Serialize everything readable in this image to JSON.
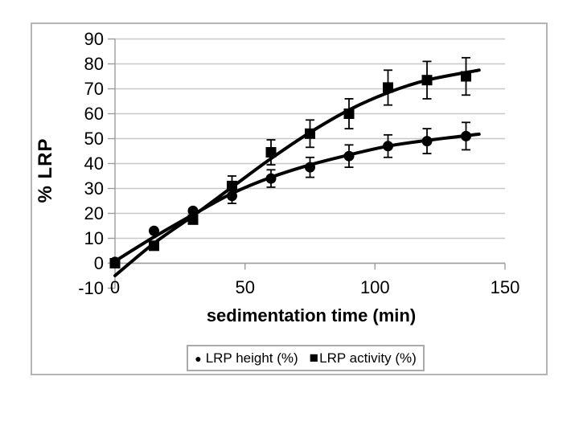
{
  "figure": {
    "y_axis_title": "% LRP",
    "x_axis_title": "sedimentation time (min)",
    "legend": {
      "items": [
        {
          "icon": "circle-marker-icon",
          "glyph": "●",
          "label": "LRP height (%)"
        },
        {
          "icon": "square-marker-icon",
          "glyph": "■",
          "label": "LRP activity (%)"
        }
      ]
    },
    "colors": {
      "frame_border": "#b4b4b4",
      "grid": "#c8c8c8",
      "axis": "#9c9c9c",
      "series": "#000000",
      "background": "#ffffff"
    }
  },
  "chart_data": {
    "type": "scatter",
    "title": "",
    "xlabel": "sedimentation time (min)",
    "ylabel": "% LRP",
    "x": [
      0,
      15,
      30,
      45,
      60,
      75,
      90,
      105,
      120,
      135
    ],
    "xticks": [
      0,
      50,
      100,
      150
    ],
    "yticks": [
      90,
      80,
      70,
      60,
      50,
      40,
      30,
      20,
      10,
      0,
      -10
    ],
    "xlim": [
      0,
      150
    ],
    "ylim": [
      -10,
      90
    ],
    "grid": true,
    "legend_position": "bottom",
    "series": [
      {
        "name": "LRP height (%)",
        "marker": "circle",
        "values": [
          0.5,
          13,
          21,
          27,
          34,
          38.5,
          43,
          47,
          49,
          51
        ],
        "errors": [
          0,
          0,
          0,
          3,
          3.5,
          4,
          4.5,
          4.5,
          5,
          5.5
        ],
        "trend": [
          [
            0,
            0.8
          ],
          [
            15,
            10.5
          ],
          [
            30,
            19.5
          ],
          [
            45,
            28
          ],
          [
            60,
            34.5
          ],
          [
            75,
            39.5
          ],
          [
            90,
            43.5
          ],
          [
            105,
            47
          ],
          [
            120,
            49.3
          ],
          [
            140,
            51.8
          ]
        ]
      },
      {
        "name": "LRP activity (%)",
        "marker": "square",
        "values": [
          0,
          7,
          17.5,
          31,
          44.5,
          52,
          60,
          70.5,
          73.5,
          75
        ],
        "errors": [
          0,
          0,
          0,
          4,
          5,
          5.5,
          6,
          7,
          7.5,
          7.5
        ],
        "trend": [
          [
            0,
            -5
          ],
          [
            15,
            8
          ],
          [
            30,
            19
          ],
          [
            45,
            30.5
          ],
          [
            60,
            42
          ],
          [
            75,
            52.5
          ],
          [
            90,
            61.5
          ],
          [
            105,
            68.5
          ],
          [
            120,
            73.5
          ],
          [
            140,
            77.5
          ]
        ]
      }
    ]
  }
}
